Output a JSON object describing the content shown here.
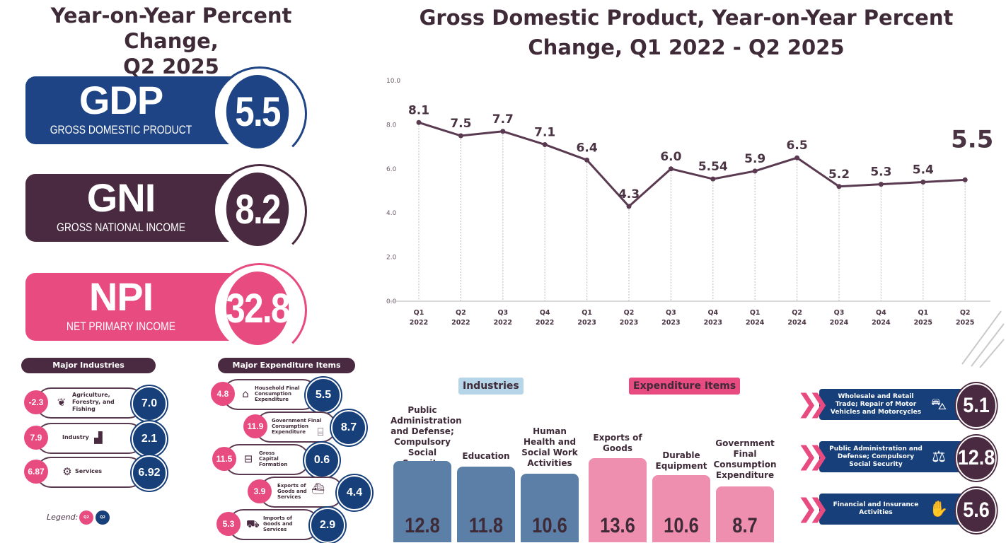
{
  "left_title": {
    "line1": "Year-on-Year Percent Change,",
    "line2": "Q2 2025"
  },
  "kpis": [
    {
      "abbr": "GDP",
      "full": "GROSS DOMESTIC PRODUCT",
      "value": "5.5",
      "color": "#1e4485"
    },
    {
      "abbr": "GNI",
      "full": "GROSS NATIONAL INCOME",
      "value": "8.2",
      "color": "#4a2a40"
    },
    {
      "abbr": "NPI",
      "full": "NET PRIMARY INCOME",
      "value": "32.8",
      "color": "#e84b7f"
    }
  ],
  "major_industries": {
    "title": "Major Industries",
    "rows": [
      {
        "prev": "-2.3",
        "label": "Agriculture, Forestry, and Fishing",
        "curr": "7.0",
        "icon": "plant-icon"
      },
      {
        "prev": "7.9",
        "label": "Industry",
        "curr": "2.1",
        "icon": "factory-icon"
      },
      {
        "prev": "6.87",
        "label": "Services",
        "curr": "6.92",
        "icon": "services-icon"
      }
    ]
  },
  "legend": {
    "label": "Legend:",
    "prev": "Q2 2024",
    "curr": "Q2 2025"
  },
  "major_expenditure": {
    "title": "Major Expenditure Items",
    "rows": [
      {
        "prev": "4.8",
        "label": "Household Final Consumption Expenditure",
        "curr": "5.5",
        "icon": "house-icon"
      },
      {
        "prev": "11.9",
        "label": "Government Final Consumption Expenditure",
        "curr": "8.7",
        "icon": "government-building-icon"
      },
      {
        "prev": "11.5",
        "label": "Gross Capital Formation",
        "curr": "0.6",
        "icon": "train-icon"
      },
      {
        "prev": "3.9",
        "label": "Exports of Goods and Services",
        "curr": "4.4",
        "icon": "ship-icon"
      },
      {
        "prev": "5.3",
        "label": "Imports of Goods and Services",
        "curr": "2.9",
        "icon": "cargo-icon"
      }
    ]
  },
  "chart_data": {
    "type": "line",
    "title": "Gross Domestic Product, Year-on-Year Percent Change, Q1 2022 - Q2 2025",
    "categories": [
      [
        "Q1",
        "2022"
      ],
      [
        "Q2",
        "2022"
      ],
      [
        "Q3",
        "2022"
      ],
      [
        "Q4",
        "2022"
      ],
      [
        "Q1",
        "2023"
      ],
      [
        "Q2",
        "2023"
      ],
      [
        "Q3",
        "2023"
      ],
      [
        "Q4",
        "2023"
      ],
      [
        "Q1",
        "2024"
      ],
      [
        "Q2",
        "2024"
      ],
      [
        "Q3",
        "2024"
      ],
      [
        "Q4",
        "2024"
      ],
      [
        "Q1",
        "2025"
      ],
      [
        "Q2",
        "2025"
      ]
    ],
    "values": [
      8.1,
      7.5,
      7.7,
      7.1,
      6.4,
      4.3,
      6.0,
      5.54,
      5.9,
      6.5,
      5.2,
      5.3,
      5.4,
      5.5
    ],
    "labels": [
      "8.1",
      "7.5",
      "7.7",
      "7.1",
      "6.4",
      "4.3",
      "6.0",
      "5.54",
      "5.9",
      "6.5",
      "5.2",
      "5.3",
      "5.4",
      "5.5"
    ],
    "yticks": [
      "0.0",
      "2.0",
      "4.0",
      "6.0",
      "8.0",
      "10.0"
    ],
    "ylim": [
      0,
      10
    ],
    "line_color": "#5a3a50"
  },
  "sector_tags": {
    "industries": "Industries",
    "expenditure": "Expenditure Items"
  },
  "industry_bars": [
    {
      "label": "Public Administration and Defense; Compulsory Social Security",
      "value": "12.8",
      "color": "#5b7fa6"
    },
    {
      "label": "Education",
      "value": "11.8",
      "color": "#5b7fa6"
    },
    {
      "label": "Human Health and Social Work Activities",
      "value": "10.6",
      "color": "#5b7fa6"
    }
  ],
  "expenditure_bars": [
    {
      "label": "Exports of Goods",
      "value": "13.6",
      "color": "#ef8fb0"
    },
    {
      "label": "Durable Equipment",
      "value": "10.6",
      "color": "#ef8fb0"
    },
    {
      "label": "Government Final Consumption Expenditure",
      "value": "8.7",
      "color": "#ef8fb0"
    }
  ],
  "ranked": [
    {
      "label": "Wholesale and Retail Trade; Repair of Motor Vehicles and Motorcycles",
      "value": "5.1",
      "icon": "shopping-cart-icon"
    },
    {
      "label": "Public Administration and Defense; Compulsory Social Security",
      "value": "12.8",
      "icon": "scales-icon"
    },
    {
      "label": "Financial and Insurance Activities",
      "value": "5.6",
      "icon": "money-hand-icon"
    }
  ]
}
